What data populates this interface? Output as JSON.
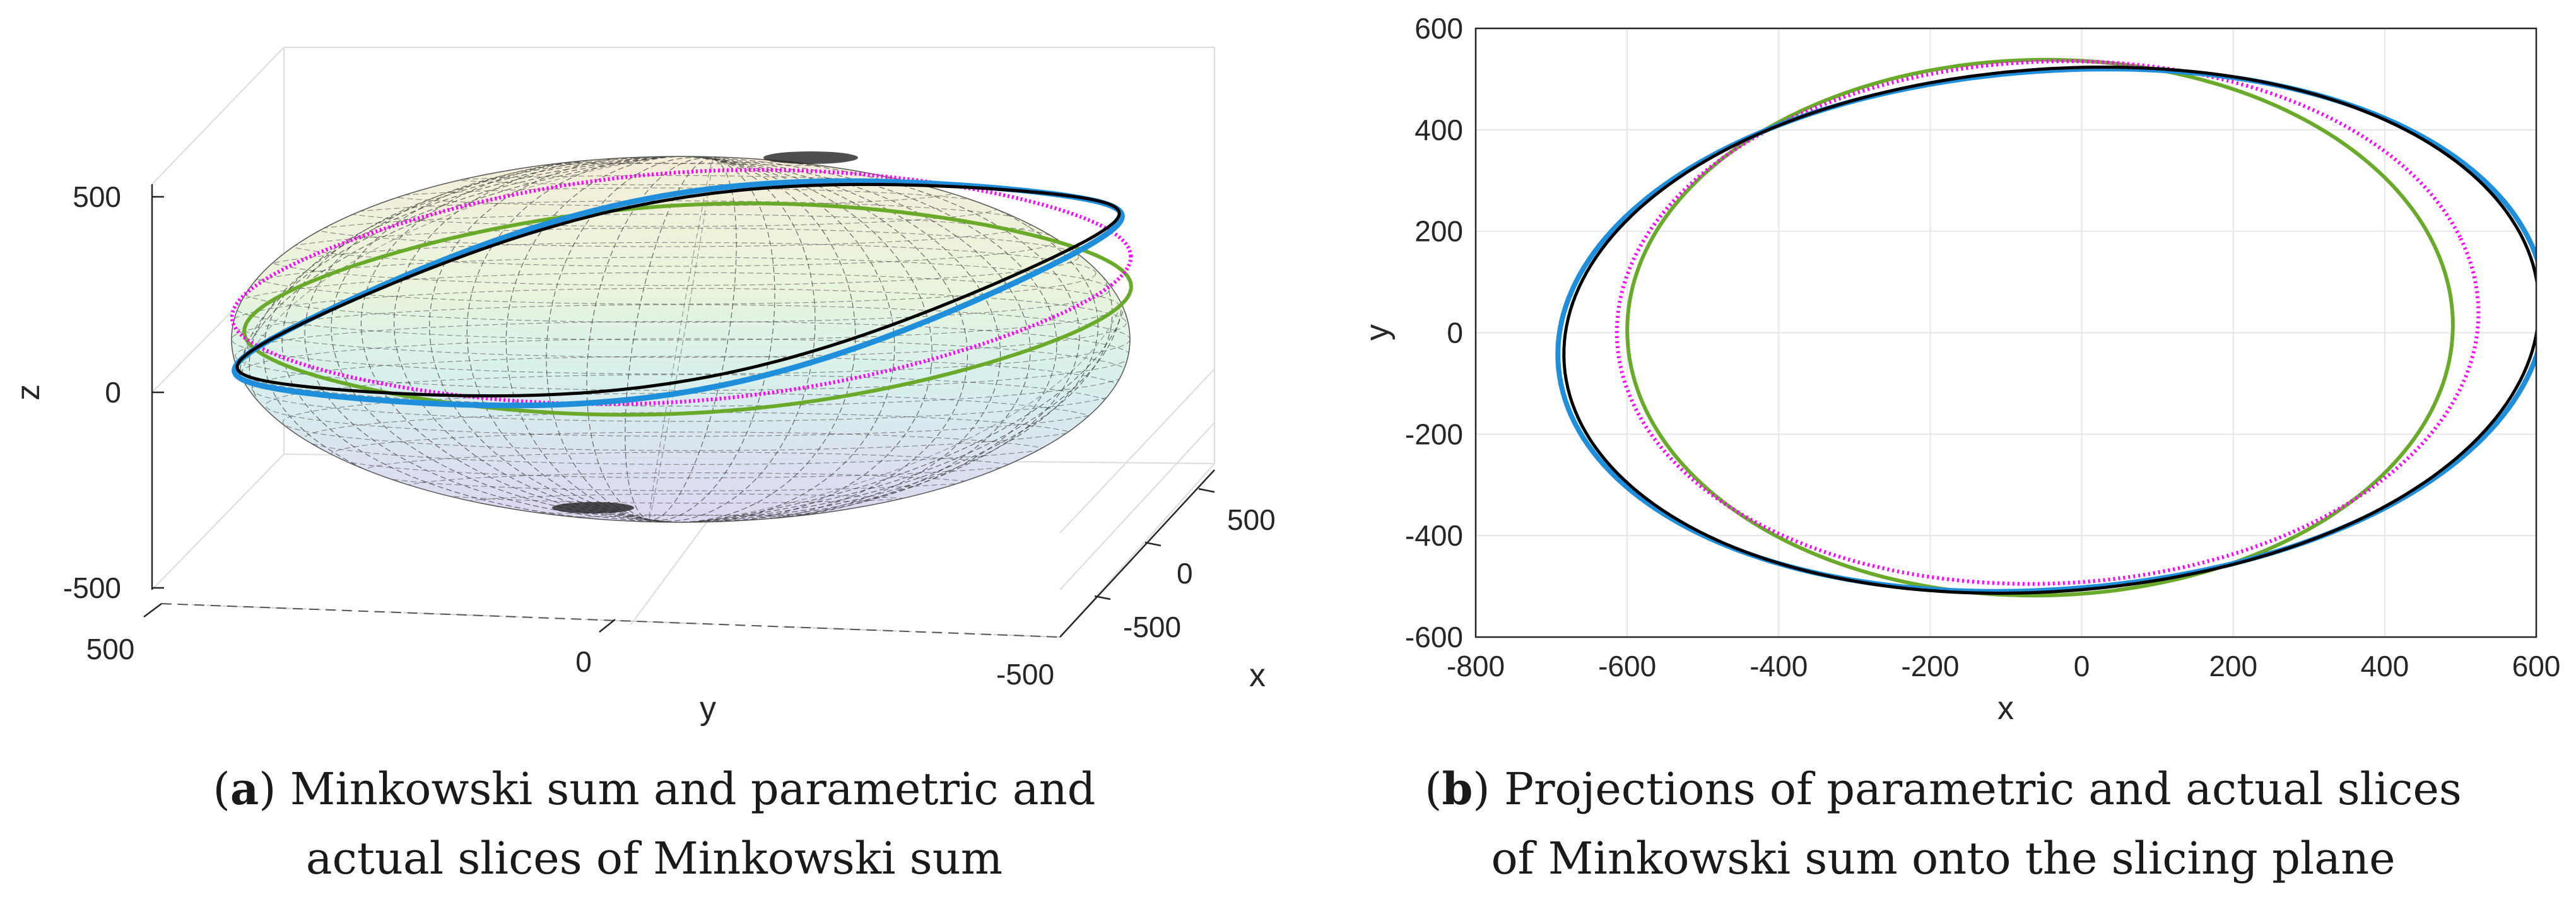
{
  "chart_data": [
    {
      "type": "line",
      "panel": "a",
      "title": "",
      "xlabel": "x",
      "ylabel": "y",
      "zlabel": "z",
      "xticks": [
        "500",
        "0",
        "-500"
      ],
      "yticks": [
        "500",
        "0",
        "-500"
      ],
      "zticks": [
        "500",
        "0",
        "-500"
      ],
      "xlim": [
        -600,
        600
      ],
      "ylim": [
        -700,
        700
      ],
      "zlim": [
        -550,
        550
      ],
      "surface": "Minkowski sum ellipsoid (mesh)",
      "series": [
        {
          "name": "magenta slice",
          "color": "#ff00ff"
        },
        {
          "name": "green slice",
          "color": "#6aaa2a"
        },
        {
          "name": "blue slice",
          "color": "#1f8fdc"
        },
        {
          "name": "black slice",
          "color": "#000000"
        }
      ],
      "caption_label": "a",
      "caption_line1": ") Minkowski sum and parametric and",
      "caption_line2": "actual slices of Minkowski sum"
    },
    {
      "type": "line",
      "panel": "b",
      "title": "",
      "xlabel": "x",
      "ylabel": "y",
      "xlim": [
        -800,
        600
      ],
      "ylim": [
        -600,
        600
      ],
      "xticks": [
        "-800",
        "-600",
        "-400",
        "-200",
        "0",
        "200",
        "400",
        "600"
      ],
      "yticks": [
        "600",
        "400",
        "200",
        "0",
        "-200",
        "-400",
        "-600"
      ],
      "grid": true,
      "series": [
        {
          "name": "black",
          "color": "#000000",
          "cx": -40,
          "cy": 5,
          "a": 620,
          "b": 560,
          "phase": 0.32,
          "k2": 0.07,
          "p2": 0.4
        },
        {
          "name": "blue",
          "color": "#1f8fdc",
          "cx": -40,
          "cy": 5,
          "a": 622,
          "b": 562,
          "phase": 0.33,
          "k2": 0.08,
          "p2": 0.45
        },
        {
          "name": "green",
          "color": "#6aaa2a",
          "cx": -55,
          "cy": 10,
          "a": 540,
          "b": 555,
          "phase": 0.36,
          "k2": 0.03,
          "p2": 0.2
        },
        {
          "name": "magenta",
          "color": "#ff00ff",
          "cx": -45,
          "cy": 20,
          "a": 560,
          "b": 545,
          "phase": 0.3,
          "k2": 0.04,
          "p2": 0.3
        }
      ],
      "caption_label": "b",
      "caption_line1": ") Projections of parametric and actual slices",
      "caption_line2": "of Minkowski sum onto the slicing plane"
    }
  ]
}
